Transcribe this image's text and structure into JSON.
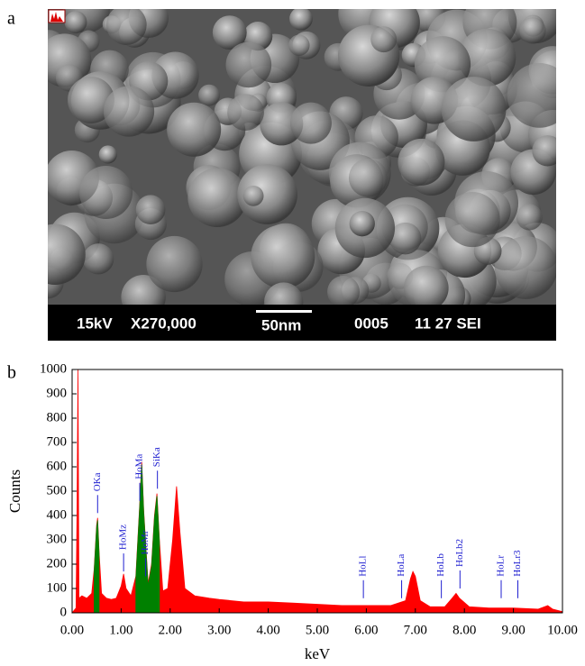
{
  "image": {
    "label": "a",
    "info_bar": [
      "15kV",
      "X270,000",
      "50nm",
      "0005",
      "11 27 SEI"
    ]
  },
  "chart_data": {
    "type": "area",
    "label": "b",
    "x_label": "keV",
    "y_label": "Counts",
    "x": [
      0.0,
      0.08,
      0.1,
      0.12,
      0.14,
      0.2,
      0.3,
      0.4,
      0.45,
      0.5,
      0.52,
      0.55,
      0.6,
      0.7,
      0.8,
      0.9,
      1.0,
      1.05,
      1.1,
      1.2,
      1.3,
      1.38,
      1.42,
      1.46,
      1.55,
      1.62,
      1.68,
      1.73,
      1.78,
      1.85,
      1.95,
      2.05,
      2.13,
      2.2,
      2.3,
      2.5,
      2.8,
      3.0,
      3.5,
      4.0,
      4.5,
      5.0,
      5.5,
      6.0,
      6.5,
      6.8,
      6.9,
      6.95,
      7.0,
      7.1,
      7.3,
      7.6,
      7.75,
      7.83,
      7.9,
      8.1,
      8.5,
      9.0,
      9.5,
      9.7,
      9.8,
      10.0
    ],
    "series": [
      {
        "color": "#ff0000",
        "values": [
          0,
          20,
          420,
          1000,
          60,
          70,
          60,
          80,
          180,
          360,
          390,
          250,
          80,
          60,
          55,
          60,
          110,
          160,
          100,
          70,
          150,
          450,
          620,
          420,
          120,
          200,
          400,
          490,
          300,
          90,
          100,
          300,
          520,
          330,
          100,
          70,
          60,
          55,
          45,
          45,
          40,
          35,
          30,
          30,
          30,
          50,
          140,
          170,
          150,
          50,
          25,
          25,
          60,
          80,
          60,
          25,
          20,
          20,
          15,
          30,
          15,
          5
        ]
      },
      {
        "color": "#008000",
        "values": [
          null,
          null,
          null,
          null,
          null,
          null,
          null,
          null,
          170,
          350,
          380,
          240,
          null,
          null,
          null,
          null,
          null,
          null,
          null,
          null,
          140,
          440,
          610,
          410,
          110,
          190,
          390,
          480,
          290,
          null,
          null,
          null,
          null,
          null,
          null,
          null,
          null,
          null,
          null,
          null,
          null,
          null,
          null,
          null,
          null,
          null,
          null,
          null,
          null,
          null,
          null,
          null,
          null,
          null,
          null,
          null,
          null,
          null,
          null,
          null,
          null,
          null
        ]
      }
    ],
    "annotations": [
      {
        "text": "OKa",
        "x": 0.52,
        "y": 410
      },
      {
        "text": "HoMz",
        "x": 1.05,
        "y": 170
      },
      {
        "text": "HoMa",
        "x": 1.38,
        "y": 460
      },
      {
        "text": "HoMr",
        "x": 1.5,
        "y": 150
      },
      {
        "text": "SiKa",
        "x": 1.74,
        "y": 510
      },
      {
        "text": "HoLl",
        "x": 5.94,
        "y": 60
      },
      {
        "text": "HoLa",
        "x": 6.72,
        "y": 60
      },
      {
        "text": "HoLb",
        "x": 7.53,
        "y": 60
      },
      {
        "text": "HoLb2",
        "x": 7.91,
        "y": 100
      },
      {
        "text": "HoLr",
        "x": 8.75,
        "y": 60
      },
      {
        "text": "HoLr3",
        "x": 9.09,
        "y": 60
      }
    ],
    "annotation_color": "#1f1fd0",
    "xlim": [
      0,
      10
    ],
    "ylim": [
      0,
      1000
    ],
    "xticks": [
      {
        "value": 0,
        "label": "0.00"
      },
      {
        "value": 1,
        "label": "1.00"
      },
      {
        "value": 2,
        "label": "2.00"
      },
      {
        "value": 3,
        "label": "3.00"
      },
      {
        "value": 4,
        "label": "4.00"
      },
      {
        "value": 5,
        "label": "5.00"
      },
      {
        "value": 6,
        "label": "6.00"
      },
      {
        "value": 7,
        "label": "7.00"
      },
      {
        "value": 8,
        "label": "8.00"
      },
      {
        "value": 9,
        "label": "9.00"
      },
      {
        "value": 10,
        "label": "10.00"
      }
    ],
    "yticks": [
      0,
      100,
      200,
      300,
      400,
      500,
      600,
      700,
      800,
      900,
      1000
    ]
  }
}
